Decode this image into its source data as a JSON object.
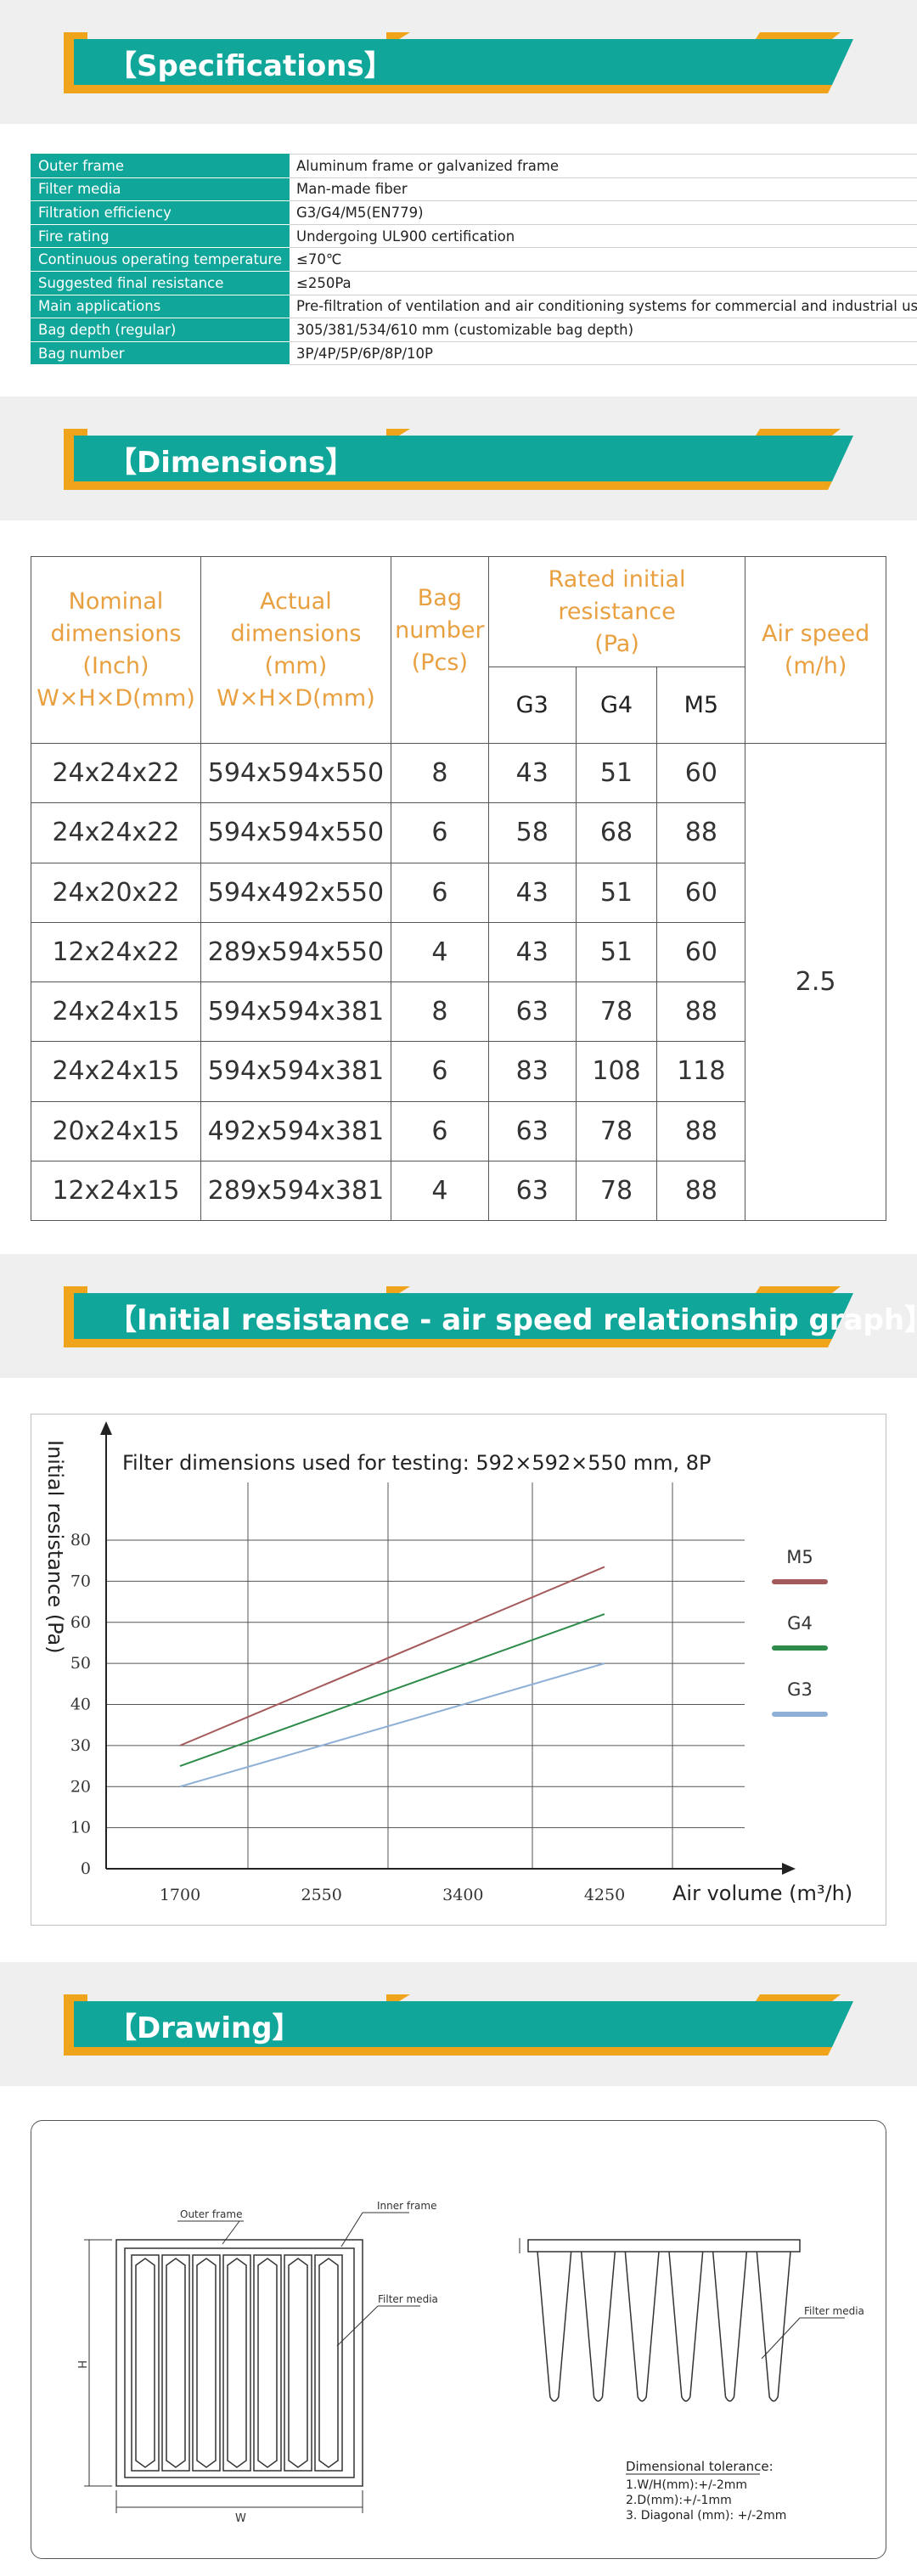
{
  "sections": {
    "specifications": "【Specifications】",
    "dimensions": "【Dimensions】",
    "graph": "【Initial resistance - air speed relationship graph】",
    "drawing": "【Drawing】"
  },
  "colors": {
    "teal": "#10a69a",
    "orange": "#f0a41c",
    "band": "#efefef",
    "m5": "#a45a5a",
    "g4": "#2e8b4a",
    "g3": "#8fb0d6"
  },
  "specs": [
    {
      "key": "Outer frame",
      "value": "Aluminum frame or galvanized frame"
    },
    {
      "key": "Filter media",
      "value": "Man-made fiber"
    },
    {
      "key": "Filtration efficiency",
      "value": "G3/G4/M5(EN779)"
    },
    {
      "key": "Fire rating",
      "value": "Undergoing UL900 certification"
    },
    {
      "key": "Continuous operating temperature",
      "value": "≤70℃"
    },
    {
      "key": "Suggested final resistance",
      "value": "≤250Pa"
    },
    {
      "key": "Main applications",
      "value": "Pre-filtration of ventilation and air conditioning systems for commercial and industrial use"
    },
    {
      "key": "Bag depth (regular)",
      "value": "305/381/534/610 mm (customizable bag depth)"
    },
    {
      "key": "Bag number",
      "value": "3P/4P/5P/6P/8P/10P"
    }
  ],
  "dims": {
    "headers": {
      "nominal": [
        "Nominal",
        "dimensions",
        "(Inch)",
        "W×H×D(mm)"
      ],
      "actual": [
        "Actual",
        "dimensions",
        "(mm)",
        "W×H×D(mm)"
      ],
      "bag": [
        "Bag",
        "number",
        "(Pcs)"
      ],
      "resistance": [
        "Rated initial",
        "resistance",
        "(Pa)"
      ],
      "speed": [
        "Air speed",
        "(m/h)"
      ],
      "grades": [
        "G3",
        "G4",
        "M5"
      ]
    },
    "rows": [
      [
        "24x24x22",
        "594x594x550",
        "8",
        "43",
        "51",
        "60"
      ],
      [
        "24x24x22",
        "594x594x550",
        "6",
        "58",
        "68",
        "88"
      ],
      [
        "24x20x22",
        "594x492x550",
        "6",
        "43",
        "51",
        "60"
      ],
      [
        "12x24x22",
        "289x594x550",
        "4",
        "43",
        "51",
        "60"
      ],
      [
        "24x24x15",
        "594x594x381",
        "8",
        "63",
        "78",
        "88"
      ],
      [
        "24x24x15",
        "594x594x381",
        "6",
        "83",
        "108",
        "118"
      ],
      [
        "20x24x15",
        "492x594x381",
        "6",
        "63",
        "78",
        "88"
      ],
      [
        "12x24x15",
        "289x594x381",
        "4",
        "63",
        "78",
        "88"
      ]
    ],
    "air_speed": "2.5"
  },
  "chart_data": {
    "type": "line",
    "title": "Filter dimensions used for testing: 592×592×550 mm, 8P",
    "xlabel": "Air volume (m³/h)",
    "ylabel": "Initial resistance (Pa)",
    "x": [
      1700,
      4250
    ],
    "xticks": [
      "1700",
      "2550",
      "3400",
      "4250"
    ],
    "yticks": [
      "0",
      "10",
      "20",
      "30",
      "40",
      "50",
      "60",
      "70",
      "80"
    ],
    "ylim": [
      0,
      80
    ],
    "series": [
      {
        "name": "M5",
        "values": [
          30,
          73.5
        ]
      },
      {
        "name": "G4",
        "values": [
          25,
          62
        ]
      },
      {
        "name": "G3",
        "values": [
          20,
          50
        ]
      }
    ],
    "legend": "right"
  },
  "drawing": {
    "outer_frame": "Outer frame",
    "inner_frame": "Inner frame",
    "filter_media_left": "Filter media",
    "filter_media_right": "Filter media",
    "h": "H",
    "w": "W",
    "tolerance_title": "Dimensional tolerance:",
    "tolerance": [
      "1.W/H(mm):+/-2mm",
      "2.D(mm):+/-1mm",
      "3. Diagonal (mm): +/-2mm"
    ]
  }
}
